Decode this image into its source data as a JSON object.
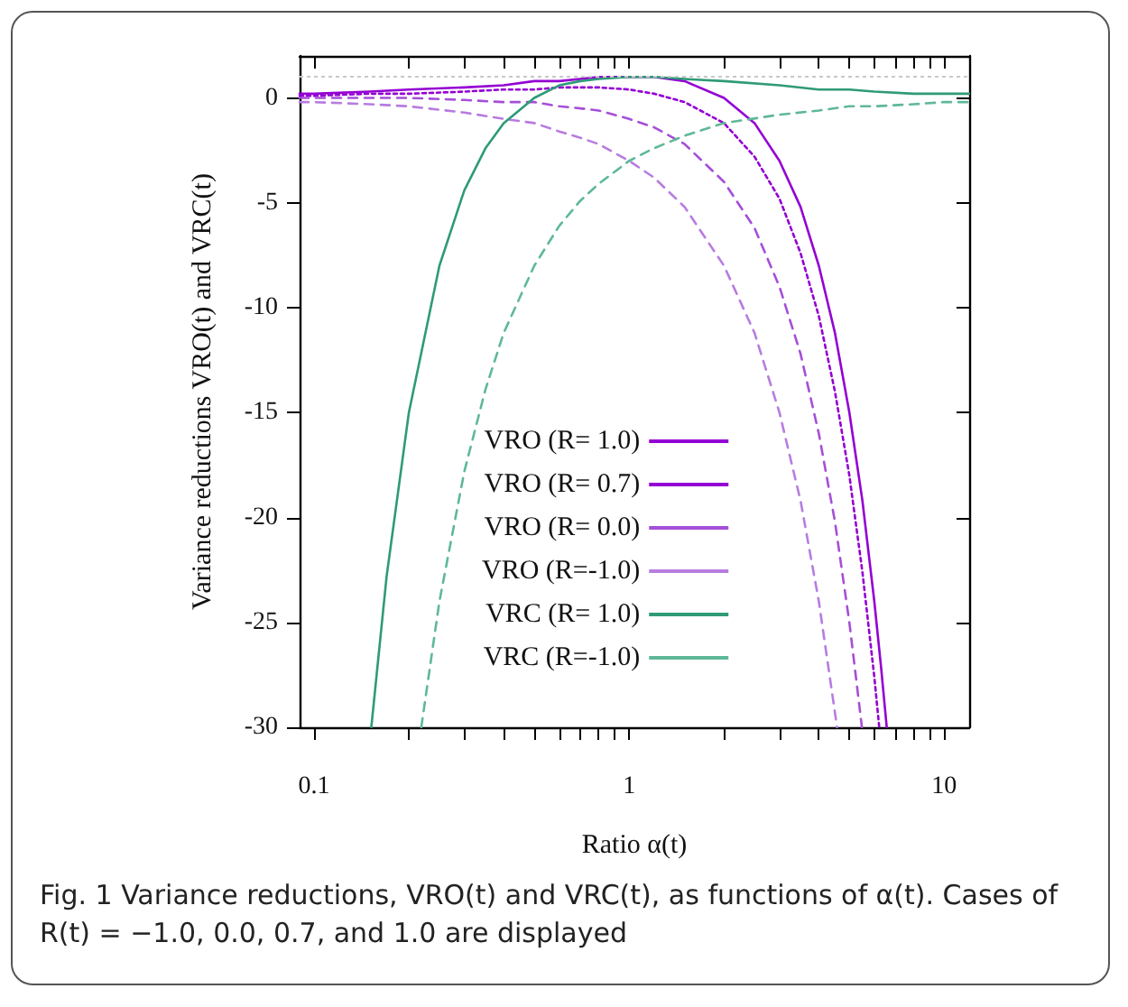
{
  "chart_data": {
    "type": "line",
    "xlabel": "Ratio α(t)",
    "ylabel": "Variance reductions VRO(t) and VRC(t)",
    "annotations": [
      "Fig. 1  Variance reductions, VRO(t) and VRC(t), as functions of α(t). Cases of R(t) = −1.0, 0.0, 0.7, and 1.0 are displayed"
    ],
    "log": "x",
    "xlim": [
      0.09,
      12
    ],
    "xticks": [
      0.1,
      {
        "value": 0.2,
        "label": null
      },
      {
        "value": 0.3,
        "label": null
      },
      {
        "value": 0.4,
        "label": null
      },
      {
        "value": 0.5,
        "label": null
      },
      {
        "value": 0.6,
        "label": null
      },
      {
        "value": 0.7,
        "label": null
      },
      {
        "value": 0.8,
        "label": null
      },
      {
        "value": 0.9,
        "label": null
      },
      1,
      {
        "value": 2,
        "label": null
      },
      {
        "value": 3,
        "label": null
      },
      {
        "value": 4,
        "label": null
      },
      {
        "value": 5,
        "label": null
      },
      {
        "value": 6,
        "label": null
      },
      {
        "value": 7,
        "label": null
      },
      {
        "value": 8,
        "label": null
      },
      {
        "value": 9,
        "label": null
      },
      10
    ],
    "ylim": [
      -30,
      2
    ],
    "yticks": [
      0,
      -5,
      -10,
      -15,
      -20,
      -25,
      -30
    ],
    "grid": false,
    "legend": "bottom",
    "marker": "none",
    "ref_lines": [
      {
        "axis": "y",
        "value": 1,
        "color": "#c8c8c8",
        "line_style": "dotted"
      }
    ],
    "series": [
      {
        "name": "VRO (R= 1.0)",
        "color": "#9400d3",
        "line_style": "solid",
        "x": [
          0.09,
          0.1,
          0.15,
          0.2,
          0.3,
          0.4,
          0.5,
          0.6,
          0.7,
          0.8,
          1,
          1.2,
          1.5,
          2,
          2.5,
          3,
          3.5,
          4,
          4.5,
          5,
          5.5,
          6,
          6.3,
          6.57
        ],
        "values": [
          0.2,
          0.2,
          0.3,
          0.4,
          0.5,
          0.6,
          0.8,
          0.8,
          0.9,
          1,
          1,
          1,
          0.8,
          0,
          -1.2,
          -3,
          -5.2,
          -8,
          -11.2,
          -15,
          -19.2,
          -24,
          -27.1,
          -30
        ]
      },
      {
        "name": "VRO (R= 0.7)",
        "color": "#9400d3",
        "line_style": "dotted",
        "x": [
          0.09,
          0.1,
          0.15,
          0.2,
          0.3,
          0.4,
          0.5,
          0.6,
          0.7,
          0.8,
          1,
          1.2,
          1.5,
          2,
          2.5,
          3,
          3.5,
          4,
          4.5,
          5,
          5.5,
          6,
          6.22
        ],
        "values": [
          0.1,
          0.1,
          0.2,
          0.2,
          0.3,
          0.4,
          0.4,
          0.5,
          0.5,
          0.5,
          0.4,
          0.2,
          -0.2,
          -1.2,
          -2.8,
          -4.8,
          -7.4,
          -10.4,
          -14,
          -18,
          -22.6,
          -27.6,
          -30
        ]
      },
      {
        "name": "VRO (R= 0.0)",
        "color": "#a54fd8",
        "line_style": "dashed",
        "x": [
          0.09,
          0.2,
          0.3,
          0.4,
          0.5,
          0.6,
          0.7,
          0.8,
          1,
          1.2,
          1.5,
          2,
          2.5,
          3,
          3.5,
          4,
          4.5,
          5,
          5.48
        ],
        "values": [
          0,
          0,
          -0.1,
          -0.2,
          -0.2,
          -0.4,
          -0.5,
          -0.6,
          -1,
          -1.4,
          -2.2,
          -4,
          -6.2,
          -9,
          -12.2,
          -16,
          -20.2,
          -25,
          -30
        ]
      },
      {
        "name": "VRO (R=-1.0)",
        "color": "#b77ce0",
        "line_style": "dashed",
        "x": [
          0.09,
          0.1,
          0.15,
          0.2,
          0.3,
          0.4,
          0.5,
          0.6,
          0.7,
          0.8,
          1,
          1.2,
          1.5,
          2,
          2.5,
          3,
          3.5,
          4,
          4.57
        ],
        "values": [
          -0.2,
          -0.2,
          -0.3,
          -0.4,
          -0.7,
          -1,
          -1.2,
          -1.6,
          -1.9,
          -2.2,
          -3,
          -3.8,
          -5.2,
          -8,
          -11.2,
          -15,
          -19.2,
          -24,
          -30
        ]
      },
      {
        "name": "VRC (R= 1.0)",
        "color": "#2f9a78",
        "line_style": "solid",
        "x": [
          0.152,
          0.17,
          0.2,
          0.25,
          0.3,
          0.35,
          0.4,
          0.5,
          0.6,
          0.7,
          0.8,
          1,
          1.2,
          1.5,
          2,
          3,
          4,
          5,
          6,
          8,
          10,
          12
        ],
        "values": [
          -30,
          -22.8,
          -15,
          -8,
          -4.4,
          -2.4,
          -1.2,
          0,
          0.6,
          0.8,
          0.9,
          1,
          1,
          0.9,
          0.8,
          0.6,
          0.4,
          0.4,
          0.3,
          0.2,
          0.2,
          0.2
        ]
      },
      {
        "name": "VRC (R=-1.0)",
        "color": "#5fb898",
        "line_style": "dashed",
        "x": [
          0.219,
          0.25,
          0.3,
          0.35,
          0.4,
          0.5,
          0.6,
          0.7,
          0.8,
          1,
          1.2,
          1.5,
          2,
          3,
          4,
          5,
          6,
          8,
          10,
          12
        ],
        "values": [
          -30,
          -24,
          -17.8,
          -13.9,
          -11.2,
          -8,
          -6.1,
          -4.9,
          -4.1,
          -3,
          -2.4,
          -1.8,
          -1.2,
          -0.8,
          -0.6,
          -0.4,
          -0.4,
          -0.3,
          -0.2,
          -0.2
        ]
      }
    ]
  }
}
